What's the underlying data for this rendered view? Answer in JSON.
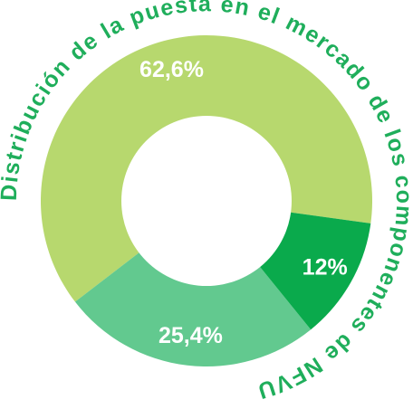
{
  "chart_data": {
    "type": "pie",
    "variant": "donut",
    "title": "Distribución de la puesta en el mercado de los componentes de NFVU",
    "slices": [
      {
        "label": "62,6%",
        "value": 62.6,
        "color": "#b7d86e"
      },
      {
        "label": "25,4%",
        "value": 25.4,
        "color": "#62c98f"
      },
      {
        "label": "12%",
        "value": 12.0,
        "color": "#0aaa4c"
      }
    ],
    "legend": "none"
  },
  "colors": {
    "title": "#1fae5b",
    "labels": "#ffffff",
    "background": "#ffffff"
  }
}
